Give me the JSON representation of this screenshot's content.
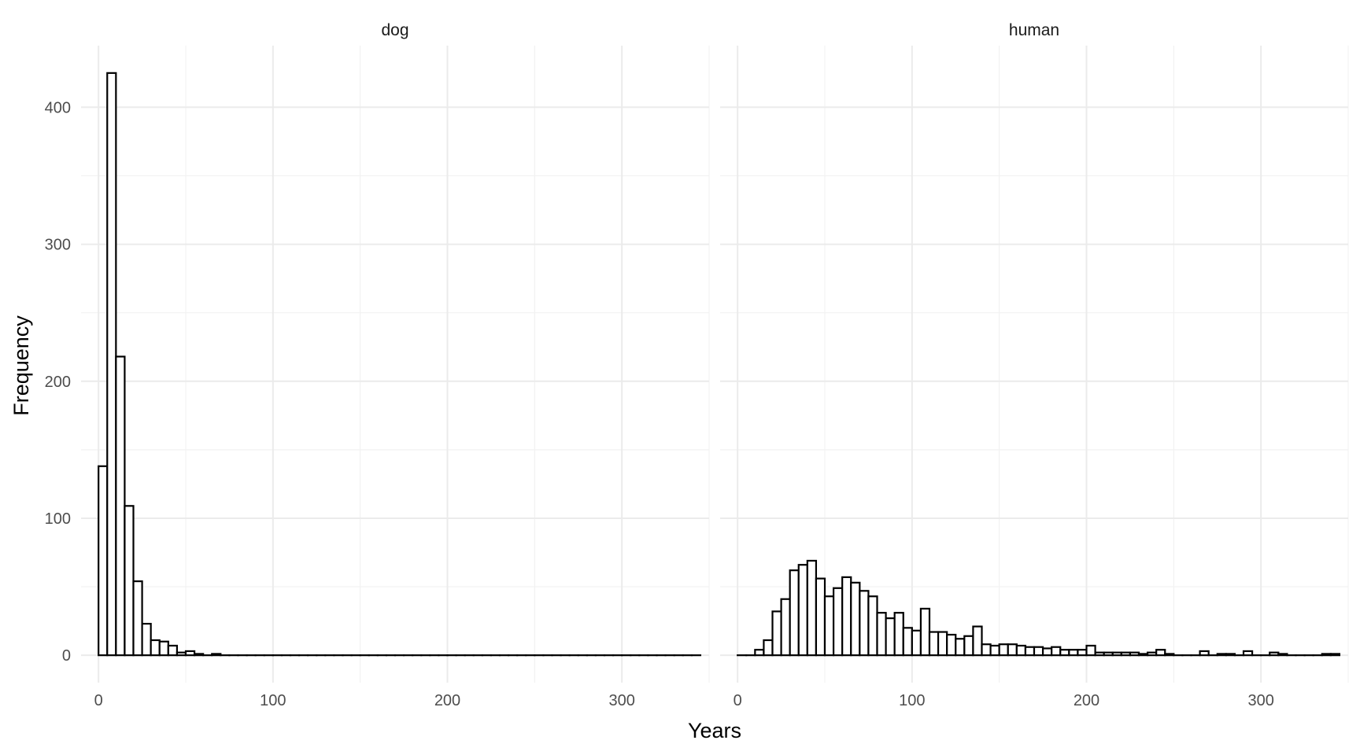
{
  "chart_data": {
    "type": "bar",
    "xlabel": "Years",
    "ylabel": "Frequency",
    "xlim": [
      -10,
      350
    ],
    "ylim": [
      -20,
      445
    ],
    "x_ticks": [
      0,
      100,
      200,
      300
    ],
    "y_ticks": [
      0,
      100,
      200,
      300,
      400
    ],
    "bin_width": 5,
    "grid": true,
    "facets": [
      {
        "name": "dog",
        "bins_start": 0,
        "values": [
          138,
          425,
          218,
          109,
          54,
          23,
          11,
          10,
          7,
          2,
          3,
          1,
          0,
          1,
          0,
          0,
          0,
          0,
          0,
          0,
          0,
          0,
          0,
          0,
          0,
          0,
          0,
          0,
          0,
          0,
          0,
          0,
          0,
          0,
          0,
          0,
          0,
          0,
          0,
          0,
          0,
          0,
          0,
          0,
          0,
          0,
          0,
          0,
          0,
          0,
          0,
          0,
          0,
          0,
          0,
          0,
          0,
          0,
          0,
          0,
          0,
          0,
          0,
          0,
          0,
          0,
          0,
          0,
          0
        ]
      },
      {
        "name": "human",
        "bins_start": 0,
        "values": [
          0,
          0,
          4,
          11,
          32,
          41,
          62,
          66,
          69,
          56,
          43,
          49,
          57,
          53,
          47,
          43,
          31,
          27,
          31,
          20,
          18,
          34,
          17,
          17,
          15,
          12,
          14,
          21,
          8,
          7,
          8,
          8,
          7,
          6,
          6,
          5,
          6,
          4,
          4,
          4,
          7,
          2,
          2,
          2,
          2,
          2,
          1,
          2,
          4,
          1,
          0,
          0,
          0,
          3,
          0,
          1,
          1,
          0,
          3,
          0,
          0,
          2,
          1,
          0,
          0,
          0,
          0,
          1,
          1
        ]
      }
    ]
  }
}
